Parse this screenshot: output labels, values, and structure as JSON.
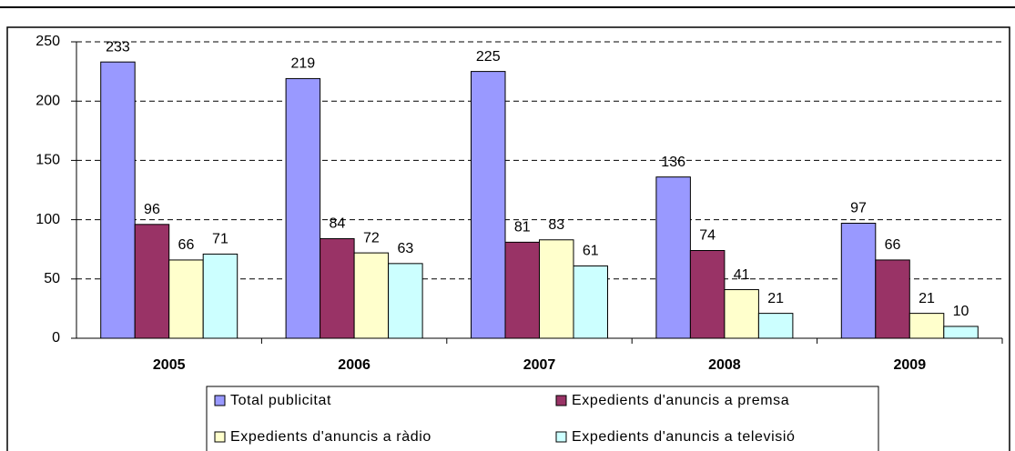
{
  "chart_data": {
    "type": "bar",
    "categories": [
      "2005",
      "2006",
      "2007",
      "2008",
      "2009"
    ],
    "series": [
      {
        "name": "Total publicitat",
        "color": "#9999ff",
        "values": [
          233,
          219,
          225,
          136,
          97
        ]
      },
      {
        "name": "Expedients d'anuncis a premsa",
        "color": "#993366",
        "values": [
          96,
          84,
          81,
          74,
          66
        ]
      },
      {
        "name": "Expedients d'anuncis a ràdio",
        "color": "#ffffcc",
        "values": [
          66,
          72,
          83,
          41,
          21
        ]
      },
      {
        "name": "Expedients d'anuncis a televisió",
        "color": "#ccffff",
        "values": [
          71,
          63,
          61,
          21,
          10
        ]
      }
    ],
    "ylim": [
      0,
      250
    ],
    "yticks": [
      0,
      50,
      100,
      150,
      200,
      250
    ],
    "grid": true,
    "legend": "bottom"
  }
}
